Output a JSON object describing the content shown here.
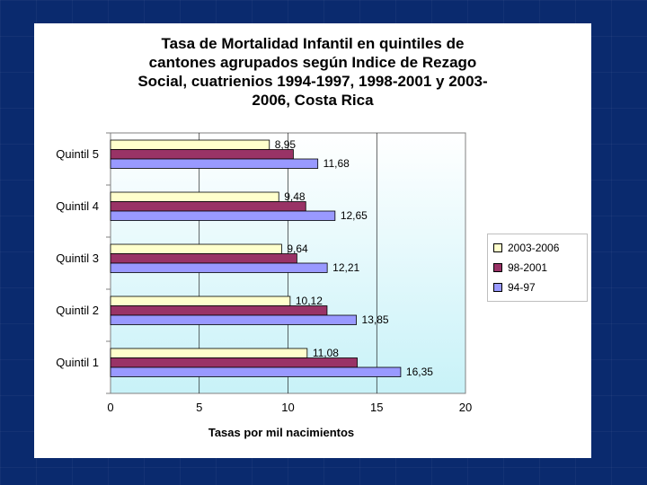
{
  "chart_data": {
    "type": "bar",
    "orientation": "horizontal",
    "title": "Tasa de Mortalidad Infantil en quintiles de\ncantones agrupados según Indice de Rezago\nSocial, cuatrienios 1994-1997, 1998-2001 y 2003-\n2006, Costa Rica",
    "xlabel": "Tasas por mil nacimientos",
    "ylabel": "",
    "xlim": [
      0,
      20
    ],
    "xticks": [
      "0",
      "5",
      "10",
      "15",
      "20"
    ],
    "grid": true,
    "legend_position": "right",
    "categories": [
      "Quintil 5",
      "Quintil 4",
      "Quintil 3",
      "Quintil 2",
      "Quintil 1"
    ],
    "series": [
      {
        "name": "2003-2006",
        "color": "#ffffcc",
        "values": [
          8.95,
          9.48,
          9.64,
          10.12,
          11.08
        ],
        "labels": [
          "8,95",
          "9,48",
          "9,64",
          "10,12",
          "11,08"
        ]
      },
      {
        "name": "98-2001",
        "color": "#993366",
        "values": [
          10.3,
          11.0,
          10.5,
          12.2,
          13.9
        ],
        "labels": [
          "",
          "",
          "",
          "",
          ""
        ]
      },
      {
        "name": "94-97",
        "color": "#9999ff",
        "values": [
          11.68,
          12.65,
          12.21,
          13.85,
          16.35
        ],
        "labels": [
          "11,68",
          "12,65",
          "12,21",
          "13,85",
          "16,35"
        ]
      }
    ],
    "legend_order": [
      "2003-2006",
      "98-2001",
      "94-97"
    ]
  }
}
